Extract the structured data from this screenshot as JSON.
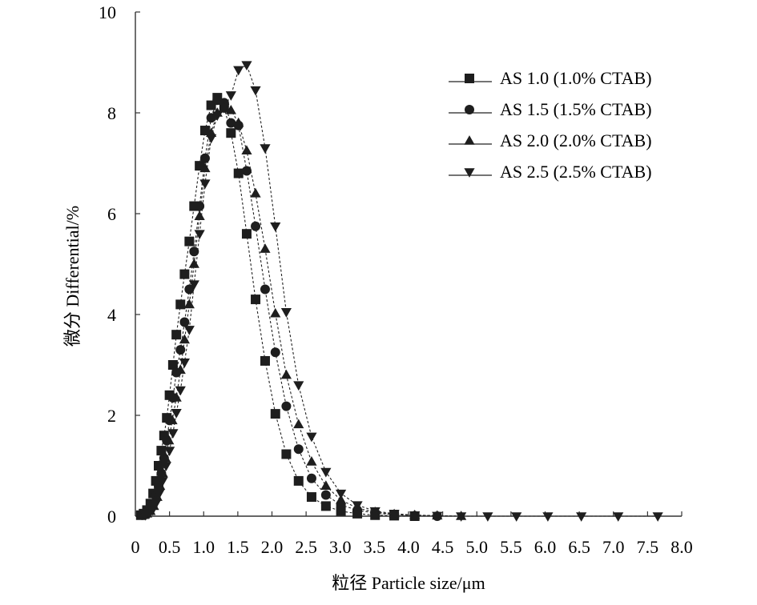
{
  "chart_data": {
    "type": "scatter",
    "title": "",
    "xlabel": "粒径 Particle size/μm",
    "ylabel": "微分 Differential/%",
    "xlim": [
      0,
      8.0
    ],
    "ylim": [
      0,
      10
    ],
    "xticks": [
      "0",
      "0.5",
      "1.0",
      "1.5",
      "2.0",
      "2.5",
      "3.0",
      "3.5",
      "4.0",
      "4.5",
      "5.0",
      "5.5",
      "6.0",
      "6.5",
      "7.0",
      "7.5",
      "8.0"
    ],
    "yticks": [
      "0",
      "2",
      "4",
      "6",
      "8",
      "10"
    ],
    "grid": false,
    "legend_position": "top-right",
    "series": [
      {
        "name": "AS 1.0 (1.0% CTAB)",
        "marker": "square",
        "x": [
          0.08,
          0.12,
          0.17,
          0.22,
          0.26,
          0.3,
          0.34,
          0.38,
          0.42,
          0.46,
          0.5,
          0.55,
          0.6,
          0.66,
          0.72,
          0.79,
          0.86,
          0.94,
          1.02,
          1.11,
          1.2,
          1.3,
          1.4,
          1.51,
          1.63,
          1.76,
          1.9,
          2.05,
          2.21,
          2.39,
          2.58,
          2.79,
          3.01,
          3.25,
          3.51,
          3.79,
          4.09
        ],
        "y": [
          0.02,
          0.05,
          0.12,
          0.25,
          0.45,
          0.7,
          1.0,
          1.3,
          1.6,
          1.95,
          2.4,
          3.0,
          3.6,
          4.2,
          4.8,
          5.45,
          6.15,
          6.95,
          7.65,
          8.15,
          8.3,
          8.1,
          7.6,
          6.8,
          5.6,
          4.3,
          3.08,
          2.03,
          1.23,
          0.7,
          0.38,
          0.2,
          0.1,
          0.05,
          0.02,
          0.01,
          0.0
        ]
      },
      {
        "name": "AS 1.5 (1.5% CTAB)",
        "marker": "circle",
        "x": [
          0.1,
          0.15,
          0.2,
          0.25,
          0.3,
          0.34,
          0.38,
          0.42,
          0.46,
          0.5,
          0.55,
          0.6,
          0.66,
          0.72,
          0.79,
          0.86,
          0.94,
          1.02,
          1.11,
          1.2,
          1.3,
          1.4,
          1.51,
          1.63,
          1.76,
          1.9,
          2.05,
          2.21,
          2.39,
          2.58,
          2.79,
          3.01,
          3.25,
          3.51,
          3.79,
          4.09,
          4.42
        ],
        "y": [
          0.02,
          0.05,
          0.1,
          0.2,
          0.4,
          0.6,
          0.85,
          1.15,
          1.5,
          1.9,
          2.35,
          2.85,
          3.3,
          3.85,
          4.5,
          5.25,
          6.15,
          7.1,
          7.9,
          8.25,
          8.2,
          7.8,
          7.75,
          6.85,
          5.75,
          4.5,
          3.25,
          2.18,
          1.33,
          0.75,
          0.42,
          0.22,
          0.12,
          0.06,
          0.03,
          0.01,
          0.0
        ]
      },
      {
        "name": "AS 2.0 (2.0% CTAB)",
        "marker": "triangle-up",
        "x": [
          0.12,
          0.17,
          0.22,
          0.27,
          0.32,
          0.36,
          0.4,
          0.44,
          0.49,
          0.54,
          0.6,
          0.66,
          0.72,
          0.79,
          0.86,
          0.94,
          1.02,
          1.11,
          1.2,
          1.3,
          1.4,
          1.51,
          1.63,
          1.76,
          1.9,
          2.05,
          2.21,
          2.39,
          2.58,
          2.79,
          3.01,
          3.25,
          3.51,
          3.79,
          4.09,
          4.42,
          4.77
        ],
        "y": [
          0.02,
          0.05,
          0.1,
          0.2,
          0.38,
          0.6,
          0.85,
          1.15,
          1.5,
          1.9,
          2.35,
          2.9,
          3.5,
          4.2,
          5.0,
          5.95,
          6.9,
          7.6,
          8.0,
          8.1,
          8.05,
          7.8,
          7.25,
          6.4,
          5.3,
          4.02,
          2.8,
          1.82,
          1.08,
          0.6,
          0.32,
          0.16,
          0.08,
          0.04,
          0.02,
          0.01,
          0.0
        ]
      },
      {
        "name": "AS 2.5 (2.5% CTAB)",
        "marker": "triangle-down",
        "x": [
          0.15,
          0.2,
          0.25,
          0.3,
          0.35,
          0.4,
          0.45,
          0.5,
          0.55,
          0.6,
          0.66,
          0.72,
          0.79,
          0.86,
          0.94,
          1.02,
          1.11,
          1.2,
          1.3,
          1.4,
          1.51,
          1.63,
          1.76,
          1.9,
          2.05,
          2.21,
          2.39,
          2.58,
          2.79,
          3.01,
          3.25,
          3.51,
          3.79,
          4.09,
          4.42,
          4.77,
          5.16,
          5.58,
          6.04,
          6.53,
          7.07,
          7.65
        ],
        "y": [
          0.02,
          0.05,
          0.12,
          0.25,
          0.45,
          0.7,
          1.0,
          1.3,
          1.65,
          2.05,
          2.5,
          3.05,
          3.7,
          4.6,
          5.6,
          6.6,
          7.5,
          7.95,
          8.1,
          8.35,
          8.85,
          8.95,
          8.45,
          7.3,
          5.75,
          4.05,
          2.6,
          1.58,
          0.88,
          0.45,
          0.22,
          0.1,
          0.05,
          0.02,
          0.01,
          0.0,
          0.0,
          0.0,
          0.0,
          0.0,
          0.0,
          0.0
        ]
      }
    ]
  }
}
